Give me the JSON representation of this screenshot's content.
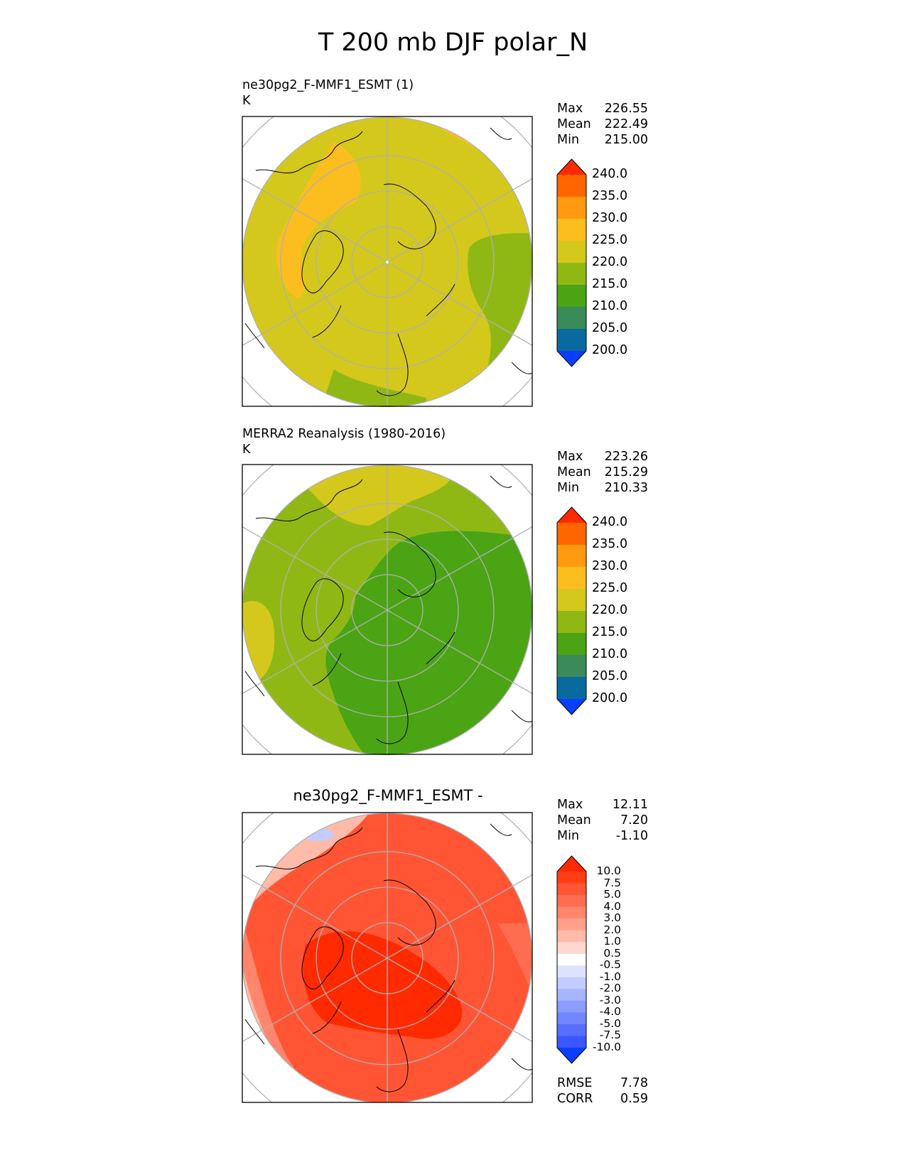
{
  "title": "T 200 mb DJF polar_N",
  "panels": [
    {
      "name": "test",
      "subtitle": "ne30pg2_F-MMF1_ESMT (1)",
      "units": "K",
      "stats": [
        {
          "label": "Max",
          "value": "226.55"
        },
        {
          "label": "Mean",
          "value": "222.49"
        },
        {
          "label": "Min",
          "value": "215.00"
        }
      ]
    },
    {
      "name": "reference",
      "subtitle": "MERRA2 Reanalysis (1980-2016)",
      "units": "K",
      "stats": [
        {
          "label": "Max",
          "value": "223.26"
        },
        {
          "label": "Mean",
          "value": "215.29"
        },
        {
          "label": "Min",
          "value": "210.33"
        }
      ]
    },
    {
      "name": "difference",
      "center_title": "ne30pg2_F-MMF1_ESMT -",
      "stats": [
        {
          "label": "Max",
          "value": "12.11"
        },
        {
          "label": "Mean",
          "value": "7.20"
        },
        {
          "label": "Min",
          "value": "-1.10"
        }
      ],
      "metrics": [
        {
          "label": "RMSE",
          "value": "7.78"
        },
        {
          "label": "CORR",
          "value": "0.59"
        }
      ]
    }
  ],
  "chart_data": [
    {
      "type": "heatmap",
      "projection": "north polar stereographic",
      "title": "ne30pg2_F-MMF1_ESMT (1)",
      "units": "K",
      "colorbar_ticks": [
        "240.0",
        "235.0",
        "230.0",
        "225.0",
        "220.0",
        "215.0",
        "210.0",
        "205.0",
        "200.0"
      ],
      "colorbar_colors": [
        "#ff2a00",
        "#ff6600",
        "#ff9a10",
        "#fcbe1e",
        "#d4c81d",
        "#90b814",
        "#4aa414",
        "#3a8a5a",
        "#0a6aa0",
        "#0a3eff"
      ],
      "max": 226.55,
      "mean": 222.49,
      "min": 215.0
    },
    {
      "type": "heatmap",
      "projection": "north polar stereographic",
      "title": "MERRA2 Reanalysis (1980-2016)",
      "units": "K",
      "colorbar_ticks": [
        "240.0",
        "235.0",
        "230.0",
        "225.0",
        "220.0",
        "215.0",
        "210.0",
        "205.0",
        "200.0"
      ],
      "colorbar_colors": [
        "#ff2a00",
        "#ff6600",
        "#ff9a10",
        "#fcbe1e",
        "#d4c81d",
        "#90b814",
        "#4aa414",
        "#3a8a5a",
        "#0a6aa0",
        "#0a3eff"
      ],
      "max": 223.26,
      "mean": 215.29,
      "min": 210.33
    },
    {
      "type": "heatmap",
      "projection": "north polar stereographic",
      "title": "ne30pg2_F-MMF1_ESMT -",
      "colorbar_ticks": [
        "10.0",
        "7.5",
        "5.0",
        "4.0",
        "3.0",
        "2.0",
        "1.0",
        "0.5",
        "-0.5",
        "-1.0",
        "-2.0",
        "-3.0",
        "-4.0",
        "-5.0",
        "-7.5",
        "-10.0"
      ],
      "colorbar_colors": [
        "#ff2a00",
        "#ff3e16",
        "#ff5535",
        "#ff6d50",
        "#ff866d",
        "#ffa08a",
        "#ffbba9",
        "#ffd8cd",
        "#ffffff",
        "#dde3ff",
        "#c2ccff",
        "#a7b5ff",
        "#8c9dff",
        "#7186ff",
        "#566fff",
        "#3a57ff",
        "#0a3eff"
      ],
      "max": 12.11,
      "mean": 7.2,
      "min": -1.1,
      "rmse": 7.78,
      "corr": 0.59
    }
  ]
}
